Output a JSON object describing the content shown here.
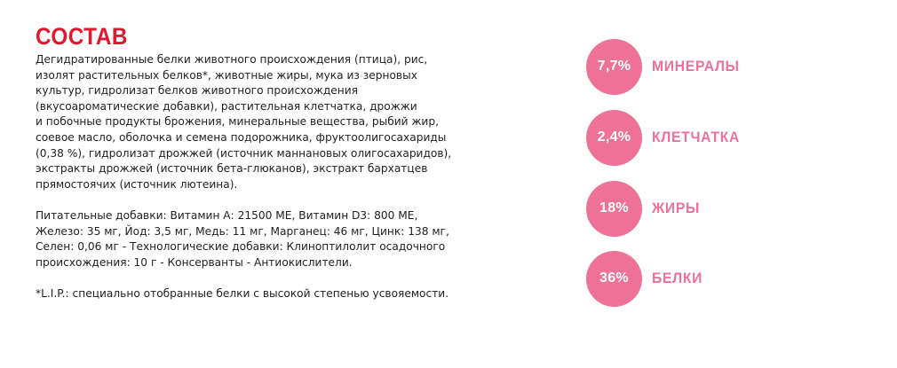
{
  "composition": {
    "title": "СОСТАВ",
    "ingredients_lines": [
      "Дегидратированные белки животного происхождения (птица), рис,",
      "изолят растительных белков*, животные жиры, мука из зерновых",
      "культур, гидролизат белков животного происхождения",
      "(вкусоароматические добавки), растительная клетчатка, дрожжи",
      "и побочные продукты брожения, минеральные вещества, рыбий жир,",
      "соевое масло, оболочка и семена подорожника, фруктоолигосахариды",
      "(0,38 %), гидролизат дрожжей (источник маннановых олигосахаридов),",
      "экстракты дрожжей (источник бета-глюканов), экстракт бархатцев",
      "прямостоячих (источник лютеина)."
    ],
    "additives_lines": [
      "Питательные добавки: Витамин А: 21500 МЕ, Витамин D3: 800 МЕ,",
      "Железо: 35 мг, Йод: 3,5 мг, Медь: 11 мг, Марганец: 46 мг, Цинк: 138 мг,",
      "Селен: 0,06 мг - Технологические добавки: Клиноптилолит осадочного",
      "происхождения: 10 г - Консерванты - Антиокислители."
    ],
    "footnote": "*L.I.P.: специально отобранные белки с высокой степенью усвояемости."
  },
  "stats": [
    {
      "value": "7,7%",
      "label": "МИНЕРАЛЫ"
    },
    {
      "value": "2,4%",
      "label": "КЛЕТЧАТКА"
    },
    {
      "value": "18%",
      "label": "ЖИРЫ"
    },
    {
      "value": "36%",
      "label": "БЕЛКИ"
    }
  ],
  "colors": {
    "title": "#e2182e",
    "accent": "#ee7198",
    "text": "#222222"
  }
}
